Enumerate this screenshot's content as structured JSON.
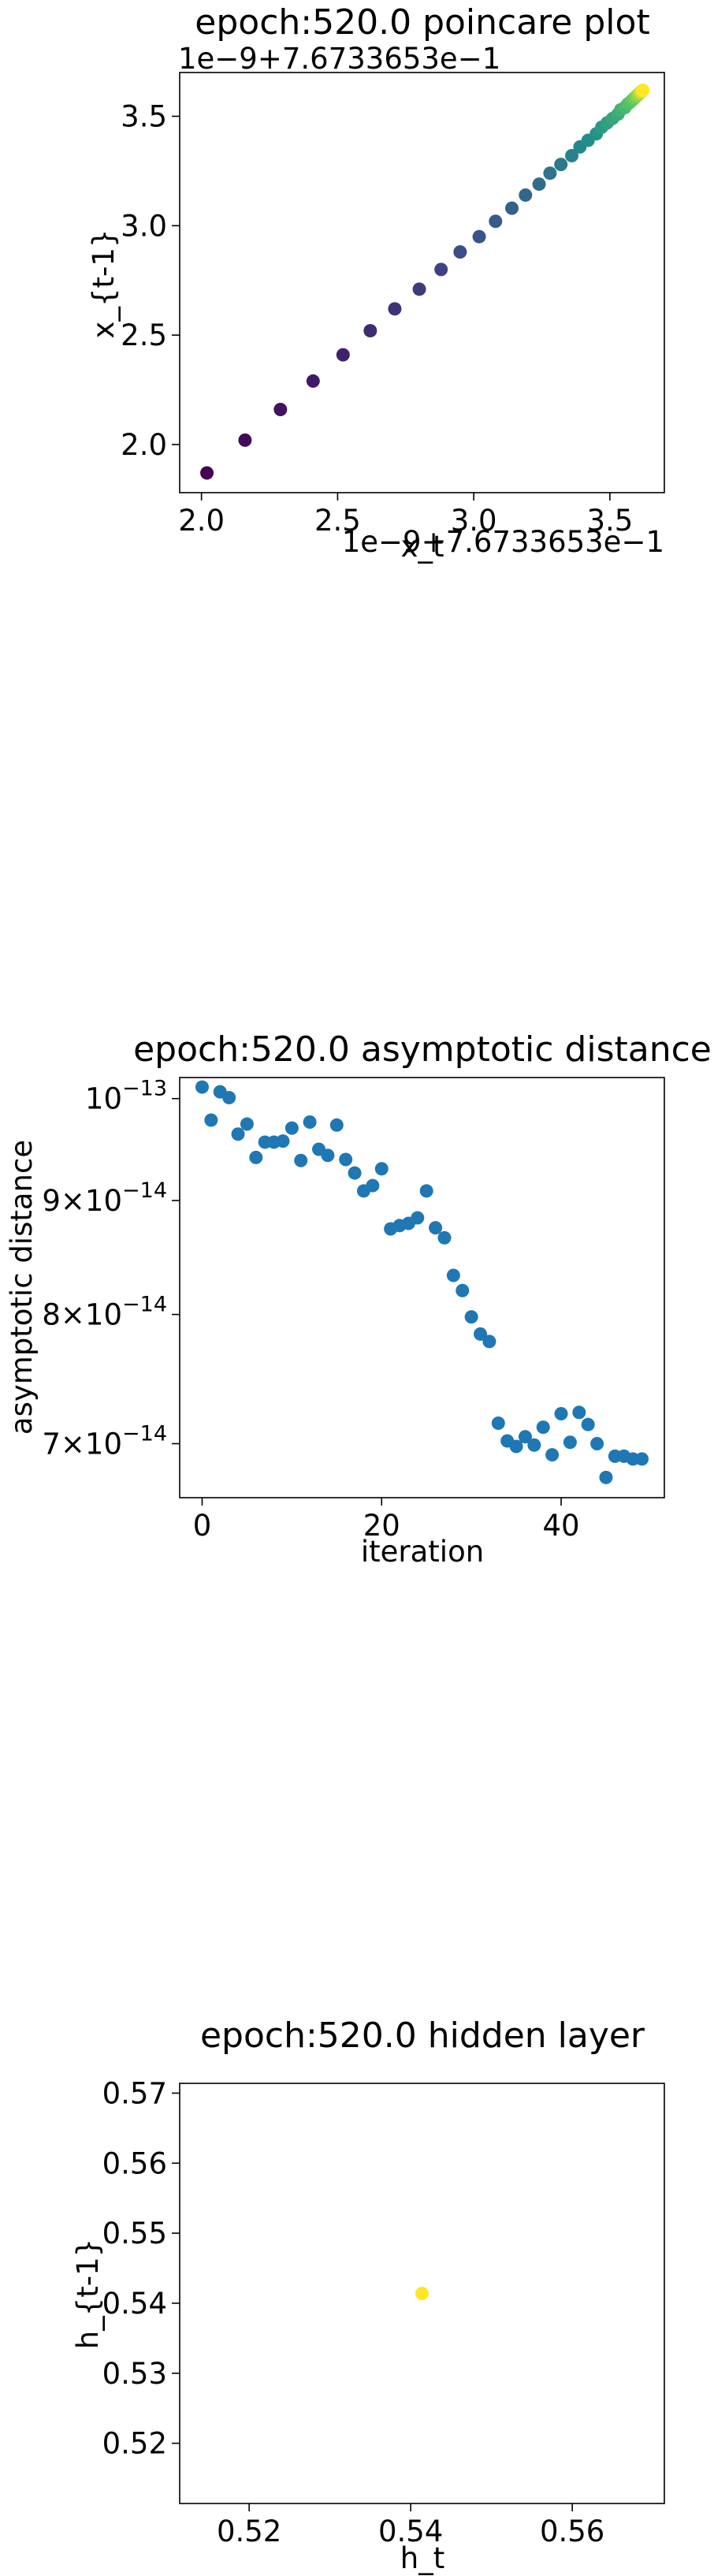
{
  "chart_data": [
    {
      "type": "scatter",
      "title": "epoch:520.0 poincare plot",
      "xlabel": "x_t",
      "ylabel": "x_{t-1}",
      "x_offset_text": "1e−9+7.6733653e−1",
      "y_offset_text": "1e−9+7.6733653e−1",
      "xlim": [
        1.92,
        3.7
      ],
      "ylim": [
        1.78,
        3.7
      ],
      "xticks": [
        "2.0",
        "2.5",
        "3.0",
        "3.5"
      ],
      "yticks": [
        "2.0",
        "2.5",
        "3.0",
        "3.5"
      ],
      "colormap": [
        "#440154",
        "#3b528b",
        "#21918c",
        "#5ec962",
        "#fde725"
      ],
      "points": [
        [
          2.02,
          1.87
        ],
        [
          2.16,
          2.02
        ],
        [
          2.29,
          2.16
        ],
        [
          2.41,
          2.29
        ],
        [
          2.52,
          2.41
        ],
        [
          2.62,
          2.52
        ],
        [
          2.71,
          2.62
        ],
        [
          2.8,
          2.71
        ],
        [
          2.88,
          2.8
        ],
        [
          2.95,
          2.88
        ],
        [
          3.02,
          2.95
        ],
        [
          3.08,
          3.02
        ],
        [
          3.14,
          3.08
        ],
        [
          3.19,
          3.14
        ],
        [
          3.24,
          3.19
        ],
        [
          3.28,
          3.24
        ],
        [
          3.32,
          3.28
        ],
        [
          3.36,
          3.32
        ],
        [
          3.39,
          3.36
        ],
        [
          3.42,
          3.39
        ],
        [
          3.45,
          3.42
        ],
        [
          3.47,
          3.45
        ],
        [
          3.49,
          3.47
        ],
        [
          3.51,
          3.49
        ],
        [
          3.53,
          3.51
        ],
        [
          3.54,
          3.53
        ],
        [
          3.555,
          3.54
        ],
        [
          3.565,
          3.555
        ],
        [
          3.575,
          3.565
        ],
        [
          3.583,
          3.575
        ],
        [
          3.59,
          3.583
        ],
        [
          3.596,
          3.59
        ],
        [
          3.601,
          3.596
        ],
        [
          3.605,
          3.601
        ],
        [
          3.609,
          3.605
        ],
        [
          3.612,
          3.609
        ],
        [
          3.615,
          3.612
        ],
        [
          3.617,
          3.615
        ],
        [
          3.619,
          3.617
        ],
        [
          3.621,
          3.619
        ]
      ]
    },
    {
      "type": "scatter",
      "title": "epoch:520.0 asymptotic distance",
      "xlabel": "iteration",
      "ylabel": "asymptotic distance",
      "yscale": "log",
      "xlim": [
        -2.5,
        51.5
      ],
      "ylim": [
        6.62e-14,
        1.022e-13
      ],
      "xticks": [
        0,
        20,
        40
      ],
      "yticks": [
        {
          "value": 1e-13,
          "mantissa": "10",
          "exponent": "−13"
        },
        {
          "value": 9e-14,
          "mantissa": "9×10",
          "exponent": "−14"
        },
        {
          "value": 8e-14,
          "mantissa": "8×10",
          "exponent": "−14"
        },
        {
          "value": 7e-14,
          "mantissa": "7×10",
          "exponent": "−14"
        }
      ],
      "color": "#1f77b4",
      "x": [
        0,
        1,
        2,
        3,
        4,
        5,
        6,
        7,
        8,
        9,
        10,
        11,
        12,
        13,
        14,
        15,
        16,
        17,
        18,
        19,
        20,
        21,
        22,
        23,
        24,
        25,
        26,
        27,
        28,
        29,
        30,
        31,
        32,
        33,
        34,
        35,
        36,
        37,
        38,
        39,
        40,
        41,
        42,
        43,
        44,
        45,
        46,
        47,
        48,
        49
      ],
      "y": [
        1.012e-13,
        9.78e-14,
        1.007e-13,
        1.001e-13,
        9.64e-14,
        9.74e-14,
        9.41e-14,
        9.56e-14,
        9.56e-14,
        9.57e-14,
        9.7e-14,
        9.38e-14,
        9.76e-14,
        9.49e-14,
        9.43e-14,
        9.73e-14,
        9.39e-14,
        9.26e-14,
        9.09e-14,
        9.14e-14,
        9.3e-14,
        8.74e-14,
        8.77e-14,
        8.79e-14,
        8.84e-14,
        9.09e-14,
        8.75e-14,
        8.66e-14,
        8.33e-14,
        8.2e-14,
        7.98e-14,
        7.84e-14,
        7.78e-14,
        7.15e-14,
        7.02e-14,
        6.98e-14,
        7.05e-14,
        6.99e-14,
        7.12e-14,
        6.92e-14,
        7.22e-14,
        7.01e-14,
        7.23e-14,
        7.14e-14,
        7e-14,
        6.76e-14,
        6.91e-14,
        6.91e-14,
        6.89e-14,
        6.89e-14
      ]
    },
    {
      "type": "scatter",
      "title": "epoch:520.0 hidden layer",
      "xlabel": "h_t",
      "ylabel": "h_{t-1}",
      "xlim": [
        0.5114,
        0.5714
      ],
      "ylim": [
        0.5114,
        0.5714
      ],
      "xticks": [
        "0.52",
        "0.54",
        "0.56"
      ],
      "yticks": [
        "0.52",
        "0.53",
        "0.54",
        "0.55",
        "0.56",
        "0.57"
      ],
      "color": "#fde725",
      "points": [
        [
          0.5414,
          0.5414
        ]
      ]
    }
  ]
}
